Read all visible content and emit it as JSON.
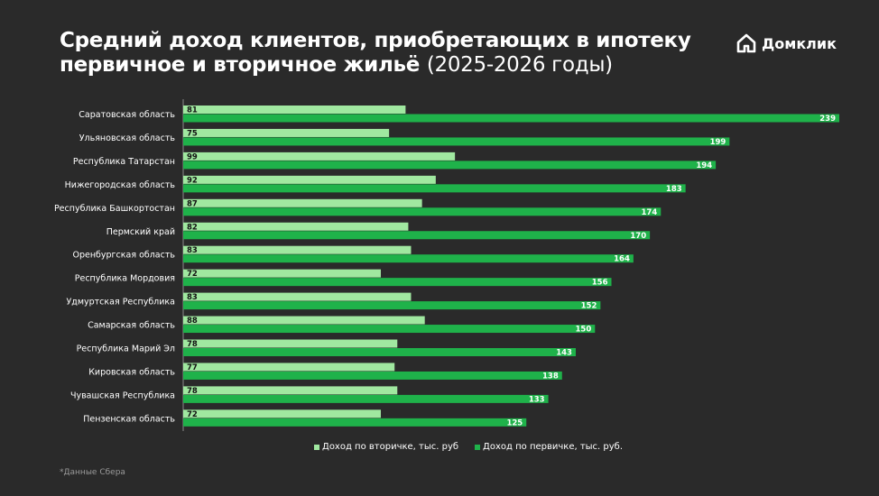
{
  "header": {
    "title_line1": "Средний доход клиентов, приобретающих в ипотеку",
    "title_line2_bold": "первичное и вторичное жильё",
    "title_line2_light": "(2025-2026 годы)"
  },
  "logo": {
    "text": "Домклик",
    "icon": "house-logo-icon"
  },
  "colors": {
    "secondary": "#a0e8a0",
    "primary": "#1fb24a",
    "background": "#2a2a2a"
  },
  "chart_data": {
    "type": "bar",
    "orientation": "horizontal",
    "categories": [
      "Саратовская область",
      "Ульяновская область",
      "Республика Татарстан",
      "Нижегородская область",
      "Республика Башкортостан",
      "Пермский край",
      "Оренбургская область",
      "Республика Мордовия",
      "Удмуртская Республика",
      "Самарская область",
      "Республика Марий Эл",
      "Кировская область",
      "Чувашская Республика",
      "Пензенская область"
    ],
    "series": [
      {
        "name": "Доход по вторичке, тыс. руб",
        "values": [
          81,
          75,
          99,
          92,
          87,
          82,
          83,
          72,
          83,
          88,
          78,
          77,
          78,
          72
        ]
      },
      {
        "name": "Доход по первичке, тыс. руб.",
        "values": [
          239,
          199,
          194,
          183,
          174,
          170,
          164,
          156,
          152,
          150,
          143,
          138,
          133,
          125
        ]
      }
    ],
    "xlim": [
      0,
      240
    ],
    "grid": false,
    "legend": "bottom"
  },
  "footnote": "*Данные Сбера"
}
